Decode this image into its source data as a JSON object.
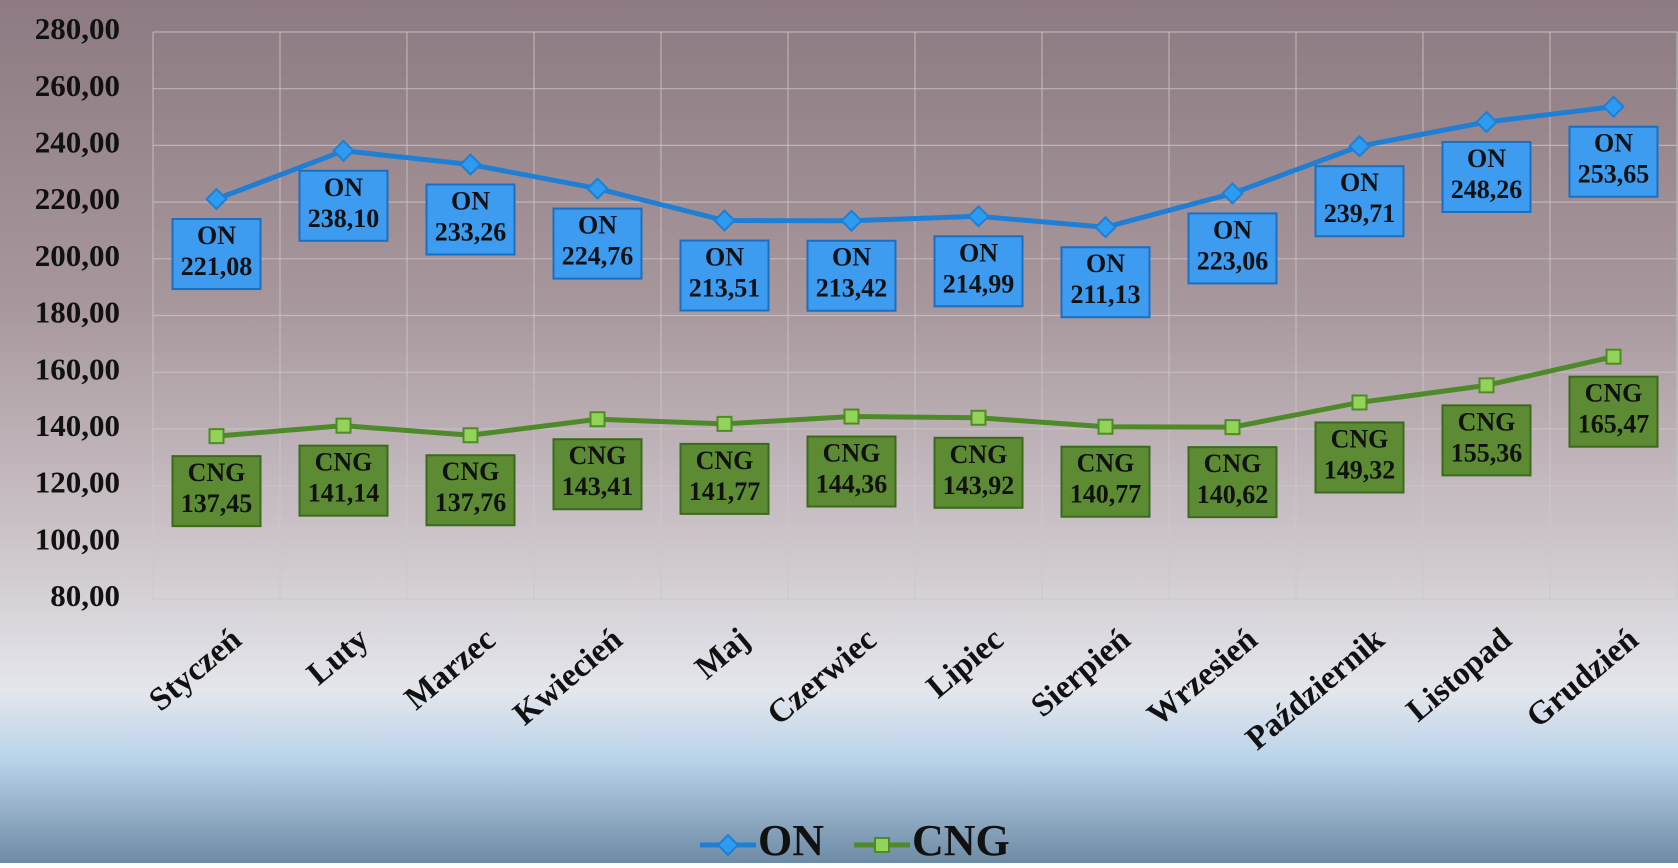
{
  "chart_data": {
    "type": "line",
    "categories": [
      "Styczeń",
      "Luty",
      "Marzec",
      "Kwiecień",
      "Maj",
      "Czerwiec",
      "Lipiec",
      "Sierpień",
      "Wrzesień",
      "Październik",
      "Listopad",
      "Grudzień"
    ],
    "series": [
      {
        "name": "ON",
        "color": "#1f7fd4",
        "label_fill": "#3d9bf0",
        "values": [
          221.08,
          238.1,
          233.26,
          224.76,
          213.51,
          213.42,
          214.99,
          211.13,
          223.06,
          239.71,
          248.26,
          253.65
        ],
        "value_labels": [
          "221,08",
          "238,10",
          "233,26",
          "224,76",
          "213,51",
          "213,42",
          "214,99",
          "211,13",
          "223,06",
          "239,71",
          "248,26",
          "253,65"
        ]
      },
      {
        "name": "CNG",
        "color": "#4f8a2a",
        "label_fill": "#5d8b33",
        "values": [
          137.45,
          141.14,
          137.76,
          143.41,
          141.77,
          144.36,
          143.92,
          140.77,
          140.62,
          149.32,
          155.36,
          165.47
        ],
        "value_labels": [
          "137,45",
          "141,14",
          "137,76",
          "143,41",
          "141,77",
          "144,36",
          "143,92",
          "140,77",
          "140,62",
          "149,32",
          "155,36",
          "165,47"
        ]
      }
    ],
    "ylim": [
      80,
      280
    ],
    "yticks": [
      {
        "value": 80,
        "label": "80,00"
      },
      {
        "value": 100,
        "label": "100,00"
      },
      {
        "value": 120,
        "label": "120,00"
      },
      {
        "value": 140,
        "label": "140,00"
      },
      {
        "value": 160,
        "label": "160,00"
      },
      {
        "value": 180,
        "label": "180,00"
      },
      {
        "value": 200,
        "label": "200,00"
      },
      {
        "value": 220,
        "label": "220,00"
      },
      {
        "value": 240,
        "label": "240,00"
      },
      {
        "value": 260,
        "label": "260,00"
      },
      {
        "value": 280,
        "label": "280,00"
      }
    ],
    "grid": true,
    "legend": "bottom"
  }
}
